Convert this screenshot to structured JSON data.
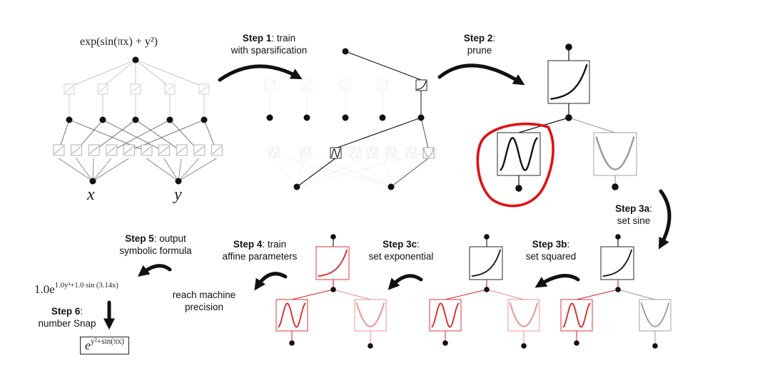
{
  "formula_top": {
    "text": "exp(sin(πx) + y²)"
  },
  "inputs": {
    "x": "x",
    "y": "y"
  },
  "steps": [
    {
      "id": "step1",
      "bold": "Step 1",
      "rest": ": train",
      "line2": "with sparsification"
    },
    {
      "id": "step2",
      "bold": "Step 2",
      "rest": ":",
      "line2": "prune"
    },
    {
      "id": "step3a",
      "bold": "Step 3a",
      "rest": ":",
      "line2": "set sine"
    },
    {
      "id": "step3b",
      "bold": "Step 3b",
      "rest": ":",
      "line2": "set squared"
    },
    {
      "id": "step3c",
      "bold": "Step 3c",
      "rest": ":",
      "line2": "set exponential"
    },
    {
      "id": "step4",
      "bold": "Step 4",
      "rest": ": train",
      "line2": "affine parameters"
    },
    {
      "id": "step5",
      "bold": "Step 5",
      "rest": ": output",
      "line2": "symbolic formula"
    },
    {
      "id": "step6",
      "bold": "Step 6",
      "rest": ":",
      "line2": "number Snap"
    }
  ],
  "note_precision": {
    "line1": "reach machine",
    "line2": "precision"
  },
  "output_formula": {
    "coef": "1.0e",
    "exponent": "1.0y²+1.0 sin (3.14x)"
  },
  "snapped_formula": {
    "base": "e",
    "exponent": "y²+sin(πx)"
  },
  "colors": {
    "black": "#111111",
    "red": "#dd2222",
    "pink": "#f08a8a",
    "gray": "#999999",
    "highlight": "#e01010"
  }
}
